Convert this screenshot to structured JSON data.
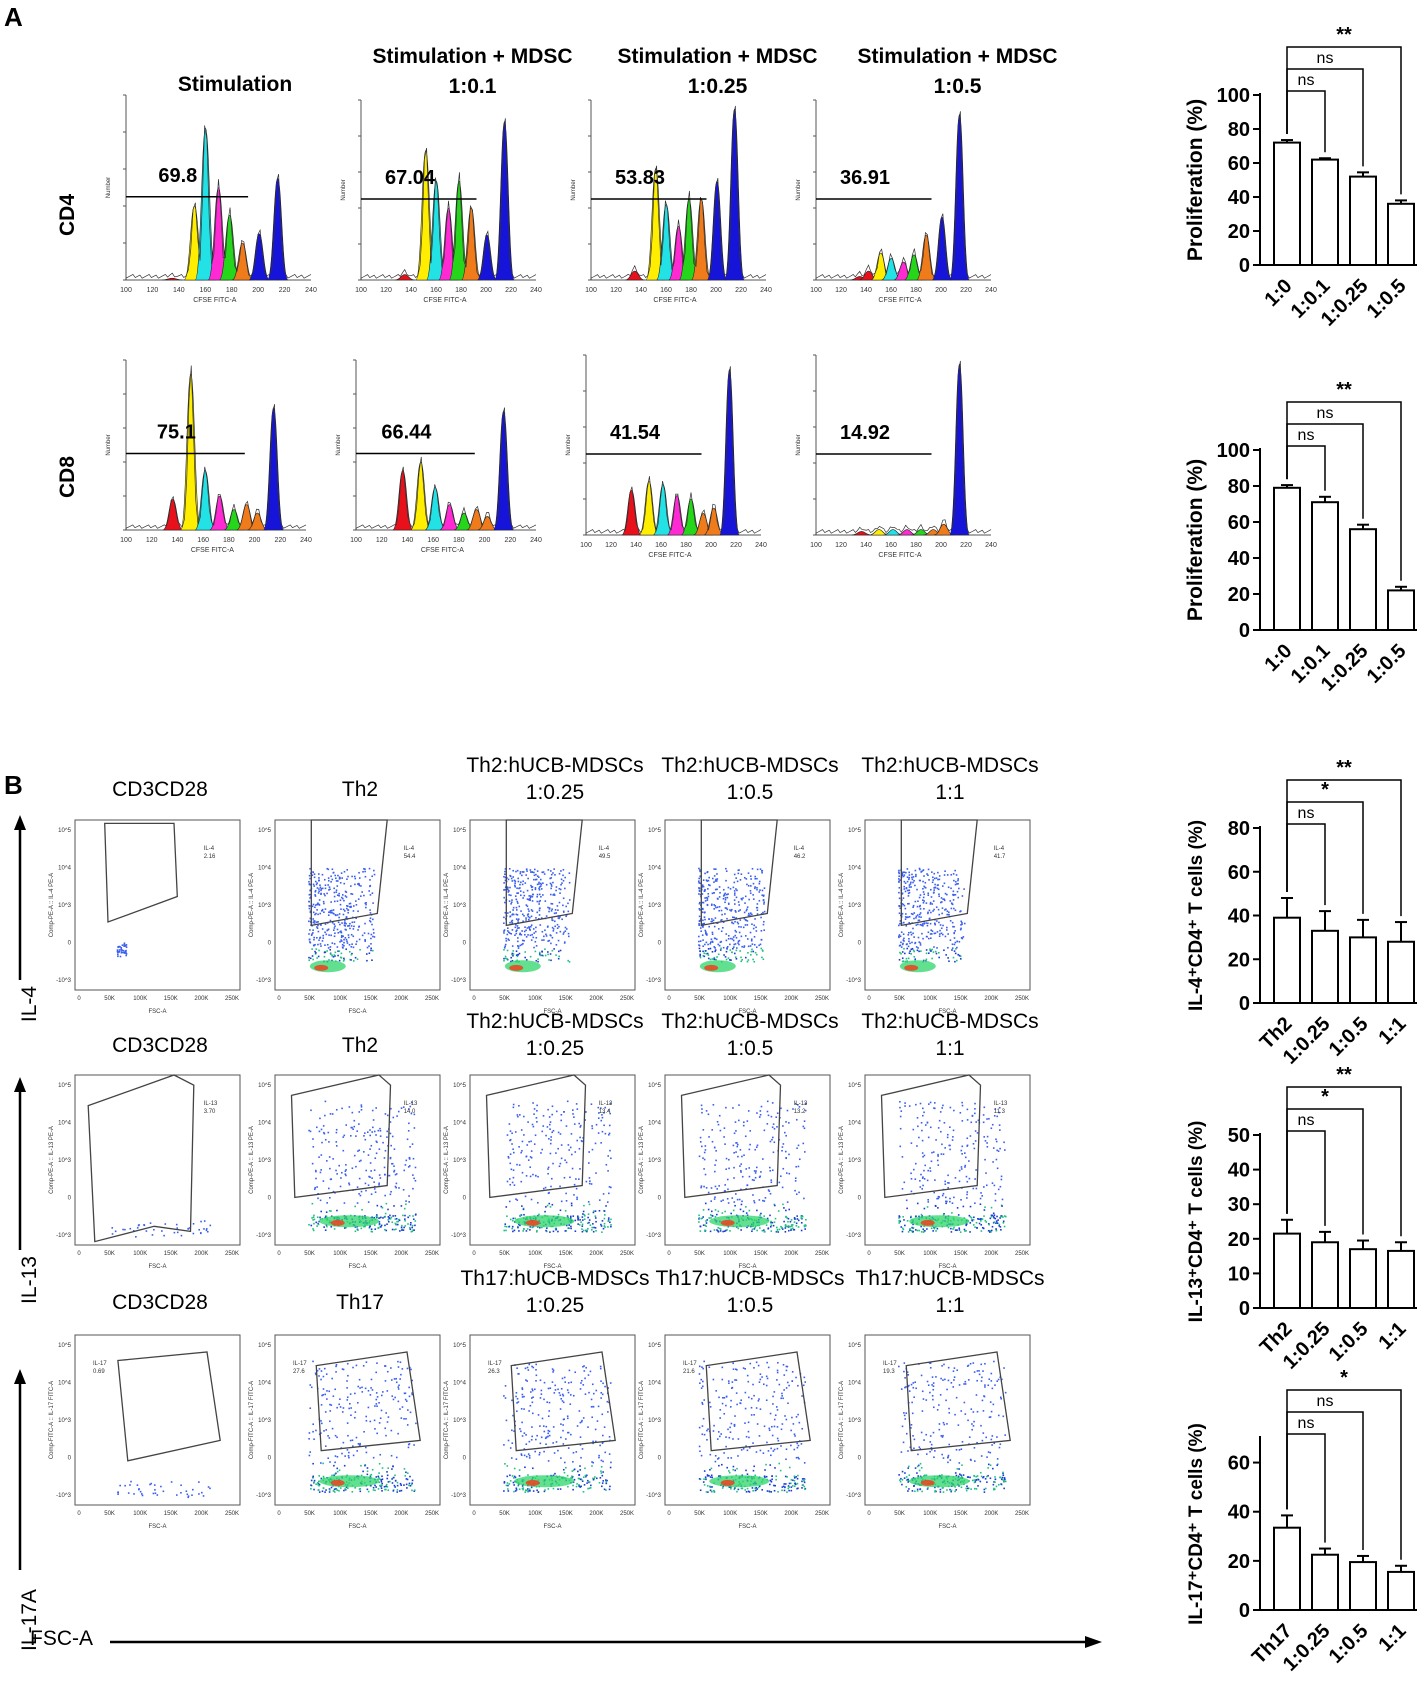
{
  "panel_a": {
    "label": "A",
    "columns": [
      "Stimulation",
      "Stimulation + MDSC\n1:0.1",
      "Stimulation + MDSC\n1:0.25",
      "Stimulation + MDSC\n1:0.5"
    ],
    "rows": [
      "CD4",
      "CD8"
    ],
    "histogram_values": [
      [
        "69.8",
        "67.04",
        "53.83",
        "36.91"
      ],
      [
        "75.1",
        "66.44",
        "41.54",
        "14.92"
      ]
    ],
    "hist_xticks_cd4": [
      [
        "100",
        "120",
        "140",
        "160",
        "180",
        "200",
        "220",
        "240"
      ],
      [
        "100",
        "120",
        "140",
        "160",
        "180",
        "200",
        "220",
        "240"
      ],
      [
        "100",
        "120",
        "140",
        "160",
        "180",
        "200",
        "220",
        "240"
      ],
      [
        "100",
        "120",
        "140",
        "160",
        "180",
        "200",
        "220",
        "240"
      ]
    ],
    "hist_xticks_cd8": [
      [
        "100",
        "120",
        "140",
        "160",
        "180",
        "200",
        "220",
        "240"
      ],
      [
        "100",
        "120",
        "140",
        "160",
        "180",
        "200",
        "220",
        "240"
      ],
      [
        "100",
        "120",
        "140",
        "160",
        "180",
        "200",
        "220",
        "240"
      ],
      [
        "100",
        "120",
        "140",
        "160",
        "180",
        "200",
        "220",
        "240"
      ]
    ],
    "hist_xlabel": "CFSE FITC-A",
    "hist_ylabel": "Number"
  },
  "panel_b": {
    "label": "B",
    "rows": [
      {
        "marker": "IL-4",
        "columns": [
          "CD3CD28",
          "Th2",
          "Th2:hUCB-MDSCs\n1:0.25",
          "Th2:hUCB-MDSCs\n1:0.5",
          "Th2:hUCB-MDSCs\n1:1"
        ],
        "gate_label": "IL-4",
        "gate_values": [
          "2.16",
          "54.4",
          "49.5",
          "46.2",
          "41.7"
        ],
        "yaxis": "Comp-PE-A :: IL-4 PE-A"
      },
      {
        "marker": "IL-13",
        "columns": [
          "CD3CD28",
          "Th2",
          "Th2:hUCB-MDSCs\n1:0.25",
          "Th2:hUCB-MDSCs\n1:0.5",
          "Th2:hUCB-MDSCs\n1:1"
        ],
        "gate_label": "IL-13",
        "gate_values": [
          "3.70",
          "14.0",
          "13.4",
          "13.2",
          "11.3"
        ],
        "yaxis": "Comp-PE-A :: IL-13 PE-A"
      },
      {
        "marker": "IL-17A",
        "columns": [
          "CD3CD28",
          "Th17",
          "Th17:hUCB-MDSCs\n1:0.25",
          "Th17:hUCB-MDSCs\n1:0.5",
          "Th17:hUCB-MDSCs\n1:1"
        ],
        "gate_label": "IL-17",
        "gate_values": [
          "0.69",
          "27.6",
          "26.3",
          "21.6",
          "19.3"
        ],
        "yaxis": "Comp-FITC-A :: IL-17 FITC-A"
      }
    ],
    "flow_xticks": [
      "0",
      "50K",
      "100K",
      "150K",
      "200K",
      "250K"
    ],
    "flow_yticks": [
      "10^5",
      "10^4",
      "10^3",
      "0",
      "-10^3"
    ],
    "flow_xlabel": "FSC-A",
    "axis_label": "FSC-A"
  },
  "chart_data": [
    {
      "type": "bar",
      "categories": [
        "1:0",
        "1:0.1",
        "1:0.25",
        "1:0.5"
      ],
      "values": [
        72,
        62,
        52,
        36
      ],
      "errors": [
        1.5,
        0.8,
        2.5,
        2
      ],
      "ylabel": "Proliferation (%)",
      "ylim": [
        0,
        100
      ],
      "yticks": [
        "0",
        "20",
        "40",
        "60",
        "80",
        "100"
      ],
      "significance": [
        {
          "from": 0,
          "to": 1,
          "label": "ns"
        },
        {
          "from": 0,
          "to": 2,
          "label": "ns"
        },
        {
          "from": 0,
          "to": 3,
          "label": "**"
        }
      ]
    },
    {
      "type": "bar",
      "categories": [
        "1:0",
        "1:0.1",
        "1:0.25",
        "1:0.5"
      ],
      "values": [
        79,
        71,
        56,
        22
      ],
      "errors": [
        1.5,
        3,
        2.5,
        2
      ],
      "ylabel": "Proliferation (%)",
      "ylim": [
        0,
        100
      ],
      "yticks": [
        "0",
        "20",
        "40",
        "60",
        "80",
        "100"
      ],
      "significance": [
        {
          "from": 0,
          "to": 1,
          "label": "ns"
        },
        {
          "from": 0,
          "to": 2,
          "label": "ns"
        },
        {
          "from": 0,
          "to": 3,
          "label": "**"
        }
      ]
    },
    {
      "type": "bar",
      "categories": [
        "Th2",
        "1:0.25",
        "1:0.5",
        "1:1"
      ],
      "values": [
        39,
        33,
        30,
        28
      ],
      "errors": [
        9,
        9,
        8,
        9
      ],
      "ylabel": "IL-4⁺CD4⁺ T cells  (%)",
      "ylim": [
        0,
        80
      ],
      "yticks": [
        "0",
        "20",
        "40",
        "60",
        "80"
      ],
      "significance": [
        {
          "from": 0,
          "to": 1,
          "label": "ns"
        },
        {
          "from": 0,
          "to": 2,
          "label": "*"
        },
        {
          "from": 0,
          "to": 3,
          "label": "**"
        }
      ]
    },
    {
      "type": "bar",
      "categories": [
        "Th2",
        "1:0.25",
        "1:0.5",
        "1:1"
      ],
      "values": [
        21.5,
        19,
        17,
        16.5
      ],
      "errors": [
        4,
        3,
        2.5,
        2.5
      ],
      "ylabel": "IL-13⁺CD4⁺ T cells  (%)",
      "ylim": [
        0,
        50
      ],
      "yticks": [
        "0",
        "10",
        "20",
        "30",
        "40",
        "50"
      ],
      "significance": [
        {
          "from": 0,
          "to": 1,
          "label": "ns"
        },
        {
          "from": 0,
          "to": 2,
          "label": "*"
        },
        {
          "from": 0,
          "to": 3,
          "label": "**"
        }
      ]
    },
    {
      "type": "bar",
      "categories": [
        "Th17",
        "1:0.25",
        "1:0.5",
        "1:1"
      ],
      "values": [
        33.5,
        22.5,
        19.5,
        15.5
      ],
      "errors": [
        5,
        2.5,
        2.5,
        2.5
      ],
      "ylabel": "IL-17⁺CD4⁺ T cells  (%)",
      "ylim": [
        0,
        70
      ],
      "yticks": [
        "0",
        "20",
        "40",
        "60"
      ],
      "significance": [
        {
          "from": 0,
          "to": 1,
          "label": "ns"
        },
        {
          "from": 0,
          "to": 2,
          "label": "ns"
        },
        {
          "from": 0,
          "to": 3,
          "label": "*"
        }
      ]
    }
  ]
}
